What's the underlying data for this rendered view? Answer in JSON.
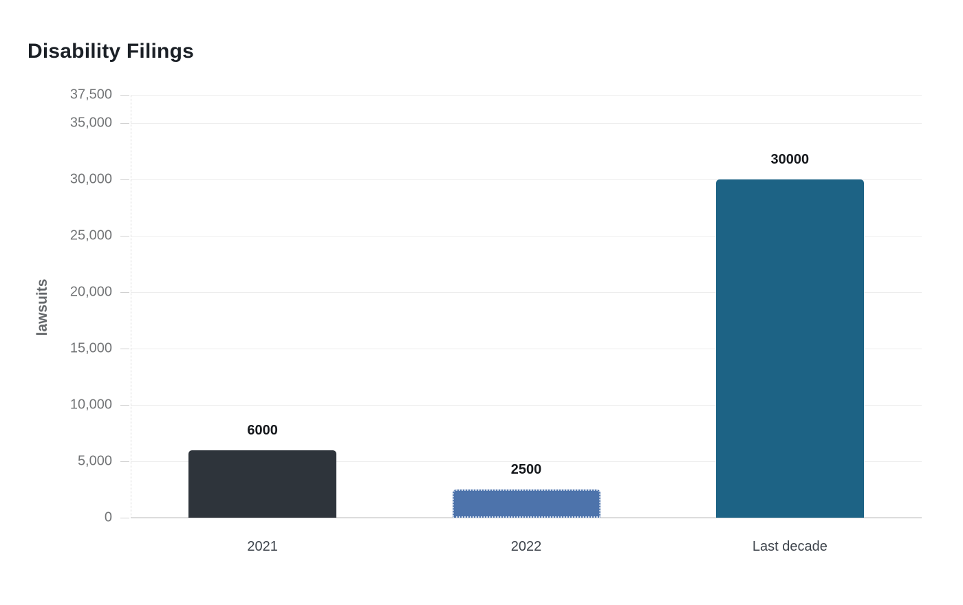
{
  "page": {
    "background": "#ffffff"
  },
  "chart_data": {
    "type": "bar",
    "title": "Disability Filings",
    "xlabel": "",
    "ylabel": "lawsuits",
    "categories": [
      "2021",
      "2022",
      "Last decade"
    ],
    "values": [
      6000,
      2500,
      30000
    ],
    "value_labels": [
      "6000",
      "2500",
      "30000"
    ],
    "bar_colors": [
      "#2e343b",
      "#4d73ab",
      "#1d6385"
    ],
    "bar_borders": [
      "none",
      "dotted",
      "none"
    ],
    "ylim": [
      0,
      37500
    ],
    "yticks": [
      0,
      5000,
      10000,
      15000,
      20000,
      25000,
      30000,
      35000,
      37500
    ],
    "ytick_labels": [
      "0",
      "5,000",
      "10,000",
      "15,000",
      "20,000",
      "25,000",
      "30,000",
      "35,000",
      "37,500"
    ],
    "grid": "horizontal",
    "legend": "none"
  },
  "style": {
    "title_color": "#1b2026",
    "axis_label_color": "#66696c",
    "tick_label_color": "#737577",
    "category_label_color": "#3d434b",
    "value_label_color": "#15181c",
    "gridline_color": "#ededed",
    "baseline_color": "#dcdcdc"
  }
}
